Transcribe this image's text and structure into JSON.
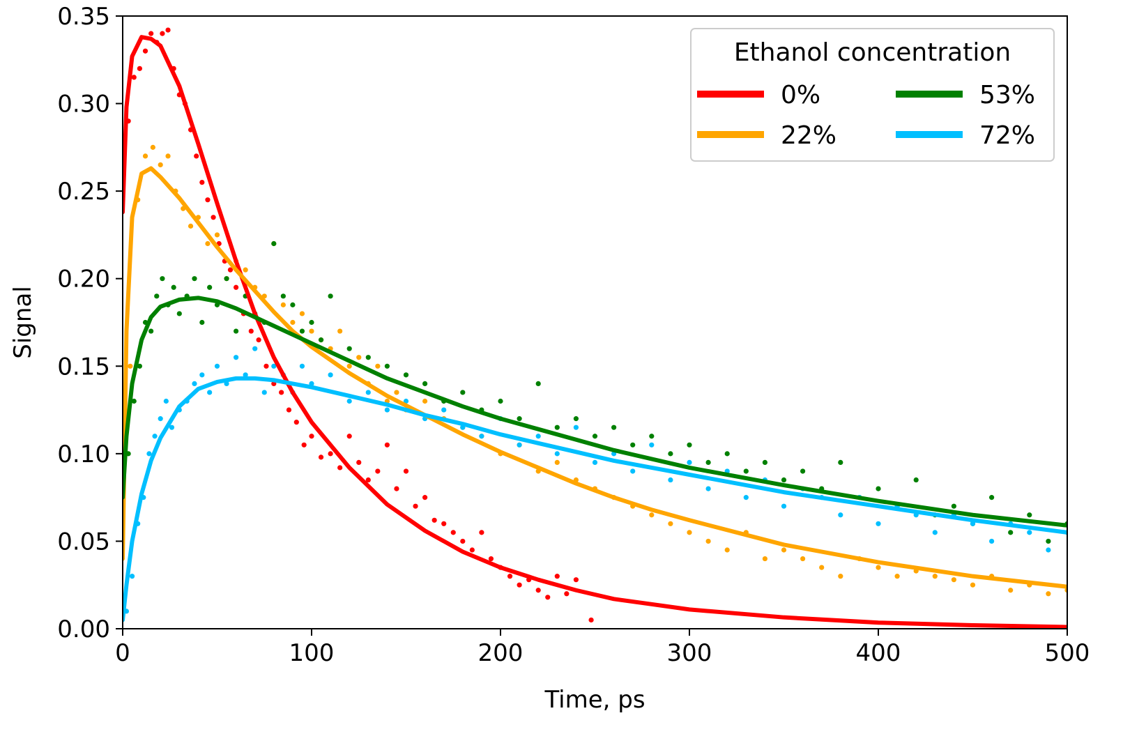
{
  "chart_data": {
    "type": "line",
    "xlabel": "Time, ps",
    "ylabel": "Signal",
    "xlim": [
      0,
      500
    ],
    "ylim": [
      0,
      0.35
    ],
    "x_ticks": [
      0,
      100,
      200,
      300,
      400,
      500
    ],
    "x_tick_labels": [
      "0",
      "100",
      "200",
      "300",
      "400",
      "500"
    ],
    "y_ticks": [
      0,
      0.05,
      0.1,
      0.15,
      0.2,
      0.25,
      0.3,
      0.35
    ],
    "y_tick_labels": [
      "0.00",
      "0.05",
      "0.10",
      "0.15",
      "0.20",
      "0.25",
      "0.30",
      "0.35"
    ],
    "grid": false,
    "legend": {
      "title": "Ethanol concentration",
      "placement": "top-right",
      "columns": 2
    },
    "series": [
      {
        "name": "0%",
        "color": "#ff0000",
        "fit": {
          "x": [
            0,
            2,
            5,
            10,
            15,
            20,
            30,
            40,
            50,
            60,
            70,
            80,
            90,
            100,
            120,
            140,
            160,
            180,
            200,
            220,
            240,
            260,
            280,
            300,
            350,
            400,
            450,
            500
          ],
          "y": [
            0.238,
            0.298,
            0.327,
            0.338,
            0.337,
            0.333,
            0.31,
            0.277,
            0.243,
            0.21,
            0.18,
            0.155,
            0.135,
            0.118,
            0.092,
            0.071,
            0.056,
            0.044,
            0.035,
            0.028,
            0.022,
            0.017,
            0.014,
            0.011,
            0.0065,
            0.0035,
            0.002,
            0.001
          ]
        },
        "points": {
          "x": [
            3,
            6,
            9,
            12,
            15,
            18,
            21,
            24,
            27,
            30,
            33,
            36,
            39,
            42,
            45,
            48,
            51,
            54,
            57,
            60,
            64,
            68,
            72,
            76,
            80,
            84,
            88,
            92,
            96,
            100,
            105,
            110,
            115,
            120,
            125,
            130,
            135,
            140,
            145,
            150,
            155,
            160,
            165,
            170,
            175,
            180,
            185,
            190,
            195,
            200,
            205,
            210,
            215,
            220,
            225,
            230,
            235,
            240,
            248
          ],
          "y": [
            0.29,
            0.315,
            0.32,
            0.33,
            0.34,
            0.335,
            0.34,
            0.342,
            0.32,
            0.305,
            0.3,
            0.285,
            0.27,
            0.255,
            0.245,
            0.235,
            0.22,
            0.21,
            0.205,
            0.195,
            0.18,
            0.17,
            0.165,
            0.15,
            0.14,
            0.135,
            0.125,
            0.118,
            0.105,
            0.11,
            0.098,
            0.1,
            0.092,
            0.11,
            0.095,
            0.085,
            0.09,
            0.105,
            0.08,
            0.09,
            0.07,
            0.075,
            0.062,
            0.06,
            0.055,
            0.05,
            0.045,
            0.055,
            0.04,
            0.035,
            0.03,
            0.025,
            0.028,
            0.022,
            0.018,
            0.03,
            0.02,
            0.028,
            0.005
          ]
        }
      },
      {
        "name": "22%",
        "color": "#ffa500",
        "fit": {
          "x": [
            0,
            2,
            5,
            10,
            15,
            20,
            30,
            40,
            50,
            60,
            70,
            80,
            90,
            100,
            120,
            140,
            160,
            180,
            200,
            220,
            240,
            260,
            280,
            300,
            350,
            400,
            450,
            500
          ],
          "y": [
            0.04,
            0.17,
            0.235,
            0.26,
            0.263,
            0.258,
            0.246,
            0.232,
            0.218,
            0.205,
            0.193,
            0.181,
            0.17,
            0.161,
            0.146,
            0.133,
            0.122,
            0.111,
            0.101,
            0.092,
            0.083,
            0.075,
            0.068,
            0.062,
            0.048,
            0.038,
            0.03,
            0.024
          ]
        },
        "points": {
          "x": [
            4,
            8,
            12,
            16,
            20,
            24,
            28,
            32,
            36,
            40,
            45,
            50,
            55,
            60,
            65,
            70,
            75,
            80,
            85,
            90,
            95,
            100,
            105,
            110,
            115,
            120,
            125,
            130,
            135,
            140,
            145,
            150,
            160,
            170,
            180,
            190,
            200,
            210,
            220,
            230,
            240,
            250,
            260,
            270,
            280,
            290,
            300,
            310,
            320,
            330,
            340,
            350,
            360,
            370,
            380,
            390,
            400,
            410,
            420,
            430,
            440,
            450,
            460,
            470,
            480,
            490,
            500
          ],
          "y": [
            0.15,
            0.245,
            0.27,
            0.275,
            0.265,
            0.27,
            0.25,
            0.24,
            0.23,
            0.235,
            0.22,
            0.225,
            0.2,
            0.21,
            0.205,
            0.195,
            0.19,
            0.22,
            0.185,
            0.175,
            0.18,
            0.17,
            0.165,
            0.16,
            0.17,
            0.15,
            0.155,
            0.14,
            0.15,
            0.13,
            0.135,
            0.125,
            0.13,
            0.12,
            0.115,
            0.11,
            0.1,
            0.105,
            0.09,
            0.095,
            0.085,
            0.08,
            0.075,
            0.07,
            0.065,
            0.06,
            0.055,
            0.05,
            0.045,
            0.055,
            0.04,
            0.045,
            0.04,
            0.035,
            0.03,
            0.04,
            0.035,
            0.03,
            0.033,
            0.03,
            0.028,
            0.025,
            0.03,
            0.022,
            0.025,
            0.02,
            0.022
          ]
        }
      },
      {
        "name": "53%",
        "color": "#008000",
        "fit": {
          "x": [
            0,
            2,
            5,
            10,
            15,
            20,
            30,
            40,
            50,
            60,
            70,
            80,
            90,
            100,
            120,
            140,
            160,
            180,
            200,
            220,
            240,
            260,
            280,
            300,
            350,
            400,
            450,
            500
          ],
          "y": [
            0.075,
            0.11,
            0.14,
            0.165,
            0.178,
            0.184,
            0.188,
            0.189,
            0.187,
            0.183,
            0.178,
            0.173,
            0.168,
            0.163,
            0.153,
            0.143,
            0.135,
            0.127,
            0.12,
            0.114,
            0.108,
            0.102,
            0.097,
            0.092,
            0.082,
            0.073,
            0.065,
            0.059
          ]
        },
        "points": {
          "x": [
            3,
            6,
            9,
            12,
            15,
            18,
            21,
            24,
            27,
            30,
            34,
            38,
            42,
            46,
            50,
            55,
            60,
            65,
            70,
            75,
            80,
            85,
            90,
            95,
            100,
            105,
            110,
            120,
            130,
            140,
            150,
            160,
            170,
            180,
            190,
            200,
            210,
            220,
            230,
            240,
            250,
            260,
            270,
            280,
            290,
            300,
            310,
            320,
            330,
            340,
            350,
            360,
            370,
            380,
            390,
            400,
            410,
            420,
            430,
            440,
            450,
            460,
            470,
            480,
            490,
            500
          ],
          "y": [
            0.1,
            0.13,
            0.15,
            0.175,
            0.17,
            0.19,
            0.2,
            0.185,
            0.195,
            0.18,
            0.19,
            0.2,
            0.175,
            0.195,
            0.185,
            0.2,
            0.17,
            0.19,
            0.18,
            0.175,
            0.22,
            0.19,
            0.185,
            0.17,
            0.175,
            0.165,
            0.19,
            0.16,
            0.155,
            0.15,
            0.145,
            0.14,
            0.13,
            0.135,
            0.125,
            0.13,
            0.12,
            0.14,
            0.115,
            0.12,
            0.11,
            0.115,
            0.105,
            0.11,
            0.1,
            0.105,
            0.095,
            0.1,
            0.09,
            0.095,
            0.085,
            0.09,
            0.08,
            0.095,
            0.075,
            0.08,
            0.07,
            0.085,
            0.065,
            0.07,
            0.06,
            0.075,
            0.055,
            0.065,
            0.05,
            0.06
          ]
        }
      },
      {
        "name": "72%",
        "color": "#00bfff",
        "fit": {
          "x": [
            0,
            2,
            5,
            10,
            15,
            20,
            30,
            40,
            50,
            60,
            70,
            80,
            90,
            100,
            120,
            140,
            160,
            180,
            200,
            220,
            240,
            260,
            280,
            300,
            350,
            400,
            450,
            500
          ],
          "y": [
            0.005,
            0.025,
            0.05,
            0.077,
            0.096,
            0.109,
            0.127,
            0.137,
            0.141,
            0.143,
            0.143,
            0.142,
            0.14,
            0.138,
            0.133,
            0.128,
            0.122,
            0.117,
            0.111,
            0.106,
            0.101,
            0.096,
            0.092,
            0.088,
            0.078,
            0.07,
            0.062,
            0.055
          ]
        },
        "points": {
          "x": [
            2,
            5,
            8,
            11,
            14,
            17,
            20,
            23,
            26,
            30,
            34,
            38,
            42,
            46,
            50,
            55,
            60,
            65,
            70,
            75,
            80,
            85,
            90,
            95,
            100,
            110,
            120,
            130,
            140,
            150,
            160,
            170,
            180,
            190,
            200,
            210,
            220,
            230,
            240,
            250,
            260,
            270,
            280,
            290,
            300,
            310,
            320,
            330,
            340,
            350,
            360,
            370,
            380,
            390,
            400,
            410,
            420,
            430,
            440,
            450,
            460,
            470,
            480,
            490,
            500
          ],
          "y": [
            0.01,
            0.03,
            0.06,
            0.075,
            0.1,
            0.11,
            0.12,
            0.13,
            0.115,
            0.125,
            0.13,
            0.14,
            0.145,
            0.135,
            0.15,
            0.14,
            0.155,
            0.145,
            0.16,
            0.135,
            0.15,
            0.145,
            0.135,
            0.15,
            0.14,
            0.145,
            0.13,
            0.135,
            0.125,
            0.13,
            0.12,
            0.125,
            0.115,
            0.11,
            0.12,
            0.105,
            0.11,
            0.1,
            0.115,
            0.095,
            0.1,
            0.09,
            0.105,
            0.085,
            0.095,
            0.08,
            0.09,
            0.075,
            0.085,
            0.07,
            0.08,
            0.075,
            0.065,
            0.075,
            0.06,
            0.07,
            0.065,
            0.055,
            0.065,
            0.06,
            0.05,
            0.06,
            0.055,
            0.045,
            0.055
          ]
        }
      }
    ]
  }
}
